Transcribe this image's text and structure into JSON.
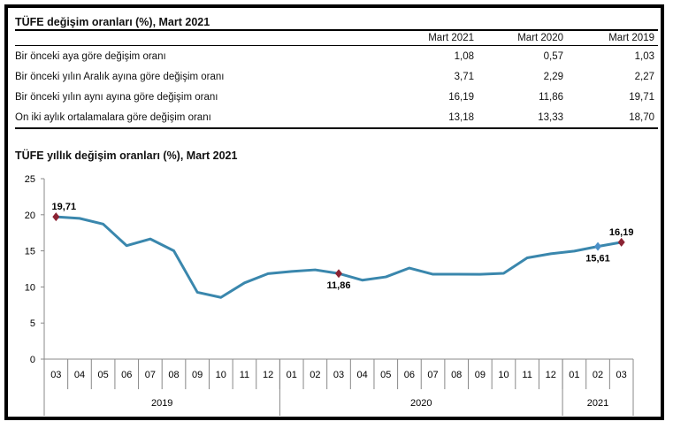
{
  "table": {
    "title": "TÜFE değişim oranları (%), Mart 2021",
    "columns": [
      "Mart 2021",
      "Mart 2020",
      "Mart 2019"
    ],
    "rows": [
      {
        "label": "Bir önceki aya göre değişim oranı",
        "values": [
          "1,08",
          "0,57",
          "1,03"
        ]
      },
      {
        "label": "Bir önceki yılın Aralık ayına göre değişim oranı",
        "values": [
          "3,71",
          "2,29",
          "2,27"
        ]
      },
      {
        "label": "Bir önceki yılın aynı ayına göre değişim oranı",
        "values": [
          "16,19",
          "11,86",
          "19,71"
        ]
      },
      {
        "label": "On iki aylık ortalamalara göre değişim oranı",
        "values": [
          "13,18",
          "13,33",
          "18,70"
        ]
      }
    ]
  },
  "chart_data": {
    "type": "line",
    "title": "TÜFE yıllık değişim oranları (%), Mart 2021",
    "categories": [
      "03",
      "04",
      "05",
      "06",
      "07",
      "08",
      "09",
      "10",
      "11",
      "12",
      "01",
      "02",
      "03",
      "04",
      "05",
      "06",
      "07",
      "08",
      "09",
      "10",
      "11",
      "12",
      "01",
      "02",
      "03"
    ],
    "groups": [
      {
        "label": "2019",
        "count": 10
      },
      {
        "label": "2020",
        "count": 12
      },
      {
        "label": "2021",
        "count": 3
      }
    ],
    "values": [
      19.71,
      19.5,
      18.71,
      15.72,
      16.65,
      15.01,
      9.26,
      8.55,
      10.56,
      11.84,
      12.15,
      12.37,
      11.86,
      10.94,
      11.39,
      12.62,
      11.76,
      11.77,
      11.75,
      11.89,
      14.03,
      14.6,
      14.97,
      15.61,
      16.19
    ],
    "ylim": [
      0,
      25
    ],
    "yticks": [
      0,
      5,
      10,
      15,
      20,
      25
    ],
    "grid": false,
    "line_color": "#3a87ad",
    "annotations": [
      {
        "index": 0,
        "label": "19,71",
        "marker_color": "#8b2333",
        "position": "above"
      },
      {
        "index": 12,
        "label": "11,86",
        "marker_color": "#8b2333",
        "position": "below"
      },
      {
        "index": 23,
        "label": "15,61",
        "marker_color": "#4a90c8",
        "position": "below"
      },
      {
        "index": 24,
        "label": "16,19",
        "marker_color": "#8b2333",
        "position": "above"
      }
    ]
  }
}
